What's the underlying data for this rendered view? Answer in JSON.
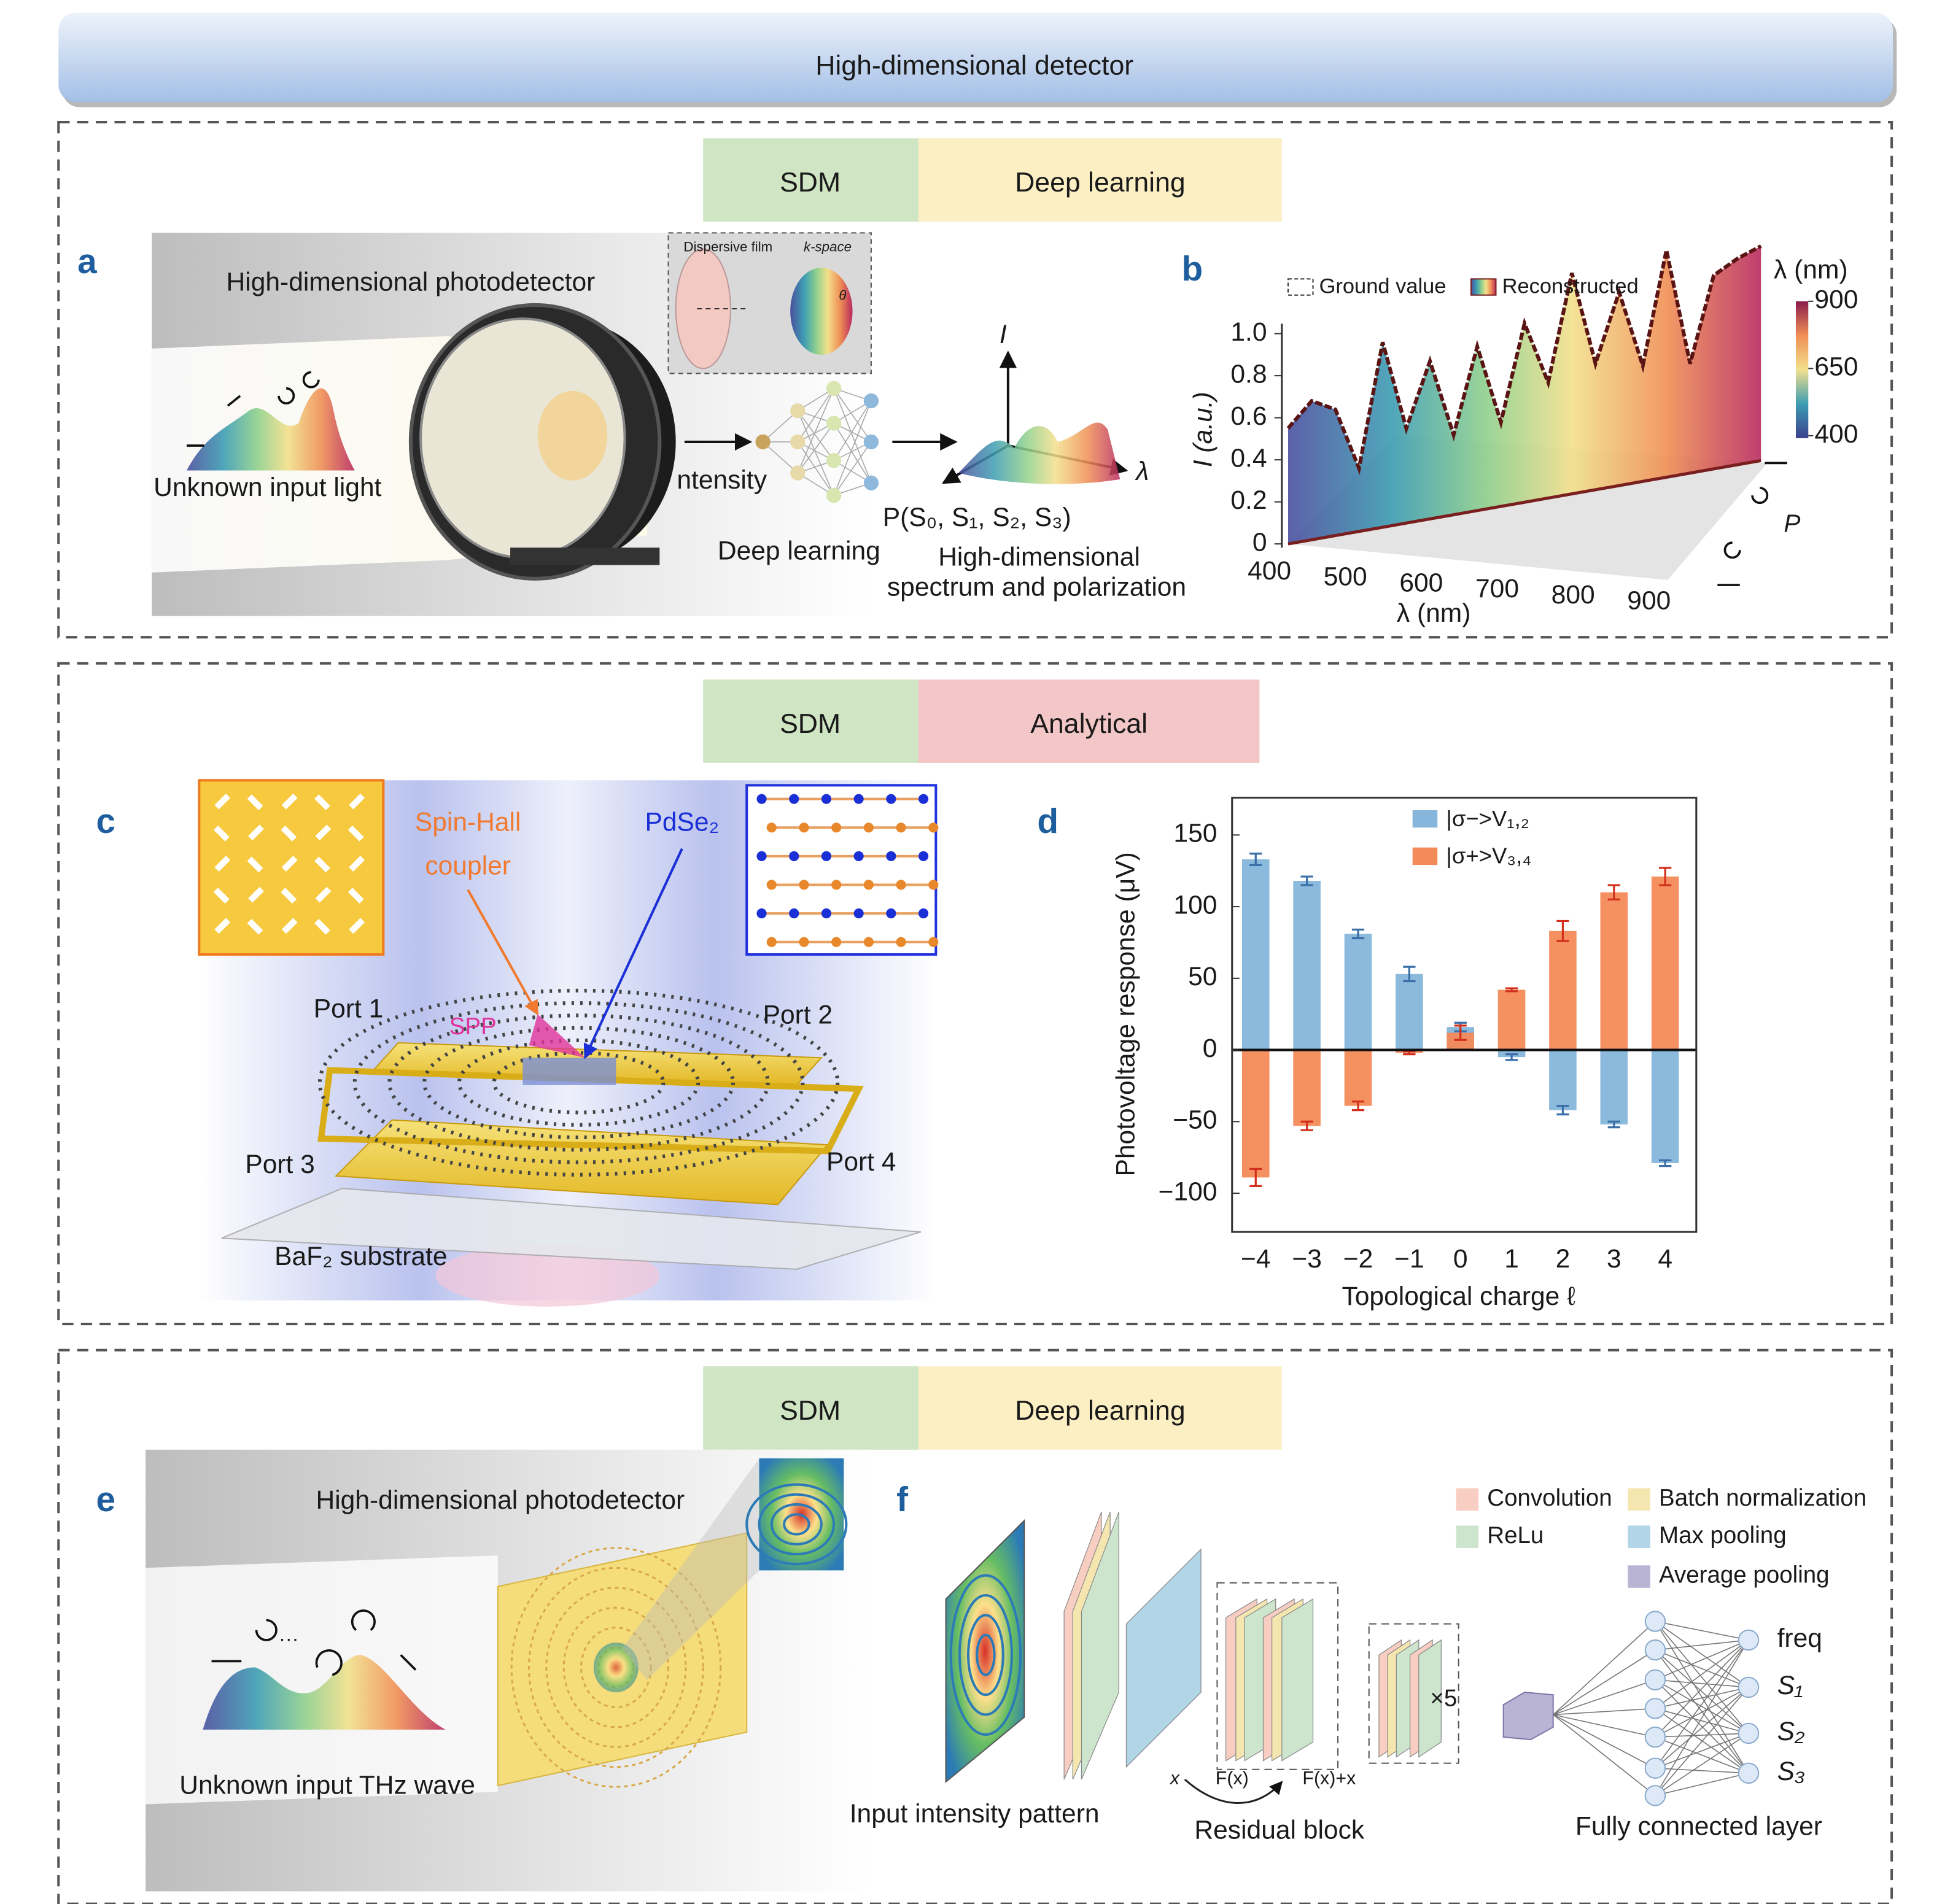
{
  "header": {
    "title": "High-dimensional detector"
  },
  "sections": [
    {
      "tags": [
        "SDM",
        "Deep learning"
      ]
    },
    {
      "tags": [
        "SDM",
        "Analytical"
      ]
    },
    {
      "tags": [
        "SDM",
        "Deep learning"
      ]
    }
  ],
  "panel_a": {
    "label": "a",
    "title": "High-dimensional photodetector",
    "input": "Unknown input light",
    "film": "Dispersive film",
    "kspace": "k-space",
    "theta": "θ",
    "intensity": "ntensity",
    "network": "Deep learning",
    "axis_i": "I",
    "axis_lambda": "λ",
    "stokes": "P(S₀, S₁, S₂, S₃)",
    "output": [
      "High-dimensional",
      "spectrum and polarization"
    ]
  },
  "panel_b": {
    "label": "b",
    "legend": [
      "Ground value",
      "Reconstructed"
    ],
    "ylabel": "I (a.u.)",
    "xlabel": "λ (nm)",
    "zlabel": "P",
    "xticks": [
      400,
      500,
      600,
      700,
      800,
      900
    ],
    "yticks": [
      0,
      0.2,
      0.4,
      0.6,
      0.8,
      {
        "value": 1,
        "label": "1.0"
      }
    ],
    "curve": {
      "x": [
        400,
        425,
        450,
        475,
        500,
        525,
        550,
        575,
        600,
        625,
        650,
        675,
        700,
        725,
        750,
        775,
        800,
        825,
        850,
        875,
        900
      ],
      "values": [
        0.55,
        0.66,
        0.6,
        0.3,
        0.88,
        0.45,
        0.75,
        0.38,
        0.78,
        0.4,
        0.85,
        0.55,
        1.05,
        0.6,
        0.92,
        0.55,
        1.08,
        0.52,
        0.92,
        0.98,
        1.02
      ]
    },
    "colorbar_title": "λ (nm)",
    "colorbar_ticks": [
      900,
      650,
      400
    ]
  },
  "panel_c": {
    "label": "c",
    "coupler": [
      "Spin-Hall",
      "coupler"
    ],
    "material": "PdSe₂",
    "spp": "SPP",
    "ports": [
      "Port 1",
      "Port 2",
      "Port 3",
      "Port 4"
    ],
    "substrate": "BaF₂ substrate"
  },
  "panel_d": {
    "label": "d",
    "type": "bar",
    "categories": [
      "−4",
      "−3",
      "−2",
      "−1",
      "0",
      "1",
      "2",
      "3",
      "4"
    ],
    "series": [
      {
        "name": "|σ−>V₁,₂",
        "color": "#86b6db",
        "error_color": "#3a6fa8",
        "values": [
          133,
          118,
          81,
          53,
          16,
          -5,
          -42,
          -52,
          -79
        ],
        "errors": [
          4,
          3,
          3,
          5,
          3,
          2,
          3,
          2,
          2
        ]
      },
      {
        "name": "|σ+>V₃,₄",
        "color": "#f48a58",
        "error_color": "#d2301c",
        "values": [
          -89,
          -53,
          -39,
          -2,
          12,
          42,
          83,
          110,
          121
        ],
        "errors": [
          6,
          3,
          3,
          1,
          5,
          1,
          7,
          5,
          6
        ]
      }
    ],
    "ylim": [
      -127,
      176
    ],
    "yticks": [
      {
        "value": -100,
        "label": "−100"
      },
      {
        "value": -50,
        "label": "−50"
      },
      0,
      50,
      100,
      150
    ],
    "xlabel": "Topological charge ℓ",
    "ylabel": "Photovoltage response (μV)"
  },
  "panel_e": {
    "label": "e",
    "title": "High-dimensional photodetector",
    "ellipsis": "···",
    "input": "Unknown input THz wave"
  },
  "panel_f": {
    "label": "f",
    "legend": [
      {
        "name": "Convolution",
        "color": "#f8cdc2"
      },
      {
        "name": "Batch normalization",
        "color": "#f5e6b0"
      },
      {
        "name": "ReLu",
        "color": "#cde4cd"
      },
      {
        "name": "Max pooling",
        "color": "#b2d5e8"
      },
      {
        "name": "Average pooling",
        "color": "#bab4d4"
      }
    ],
    "input": "Input intensity pattern",
    "residual": "Residual block",
    "x": "x",
    "fx": "F(x)",
    "fxx": "F(x)+x",
    "repeat": "×5",
    "fc": "Fully connected layer",
    "outputs": [
      "freq",
      "S₁",
      "S₂",
      "S₃"
    ]
  }
}
